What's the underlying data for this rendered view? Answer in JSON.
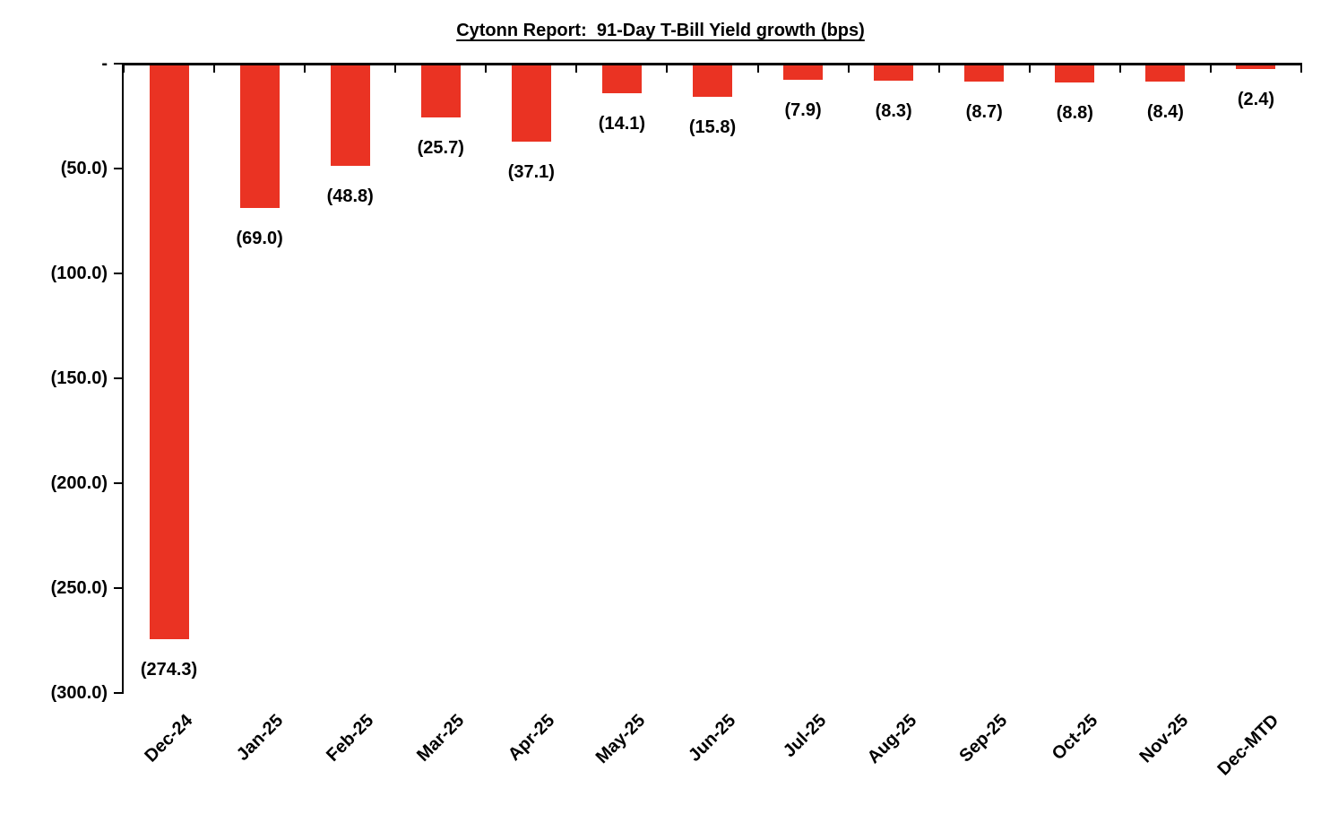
{
  "chart_data": {
    "type": "bar",
    "title": "Cytonn Report:  91-Day T-Bill Yield growth (bps)",
    "categories": [
      "Dec-24",
      "Jan-25",
      "Feb-25",
      "Mar-25",
      "Apr-25",
      "May-25",
      "Jun-25",
      "Jul-25",
      "Aug-25",
      "Sep-25",
      "Oct-25",
      "Nov-25",
      "Dec-MTD"
    ],
    "values": [
      -274.3,
      -69.0,
      -48.8,
      -25.7,
      -37.1,
      -14.1,
      -15.8,
      -7.9,
      -8.3,
      -8.7,
      -8.8,
      -8.4,
      -2.4
    ],
    "data_labels": [
      "(274.3)",
      "(69.0)",
      "(48.8)",
      "(25.7)",
      "(37.1)",
      "(14.1)",
      "(15.8)",
      "(7.9)",
      "(8.3)",
      "(8.7)",
      "(8.8)",
      "(8.4)",
      "(2.4)"
    ],
    "y_ticks": [
      {
        "label": "-",
        "value": 0
      },
      {
        "label": "(50.0)",
        "value": -50
      },
      {
        "label": "(100.0)",
        "value": -100
      },
      {
        "label": "(150.0)",
        "value": -150
      },
      {
        "label": "(200.0)",
        "value": -200
      },
      {
        "label": "(250.0)",
        "value": -250
      },
      {
        "label": "(300.0)",
        "value": -300
      }
    ],
    "ylim": [
      -300,
      0
    ],
    "xlabel": "",
    "ylabel": "",
    "grid": false,
    "legend": "none",
    "bar_color": "#EA3323",
    "axis_color": "#000000",
    "text_color": "#000000"
  }
}
